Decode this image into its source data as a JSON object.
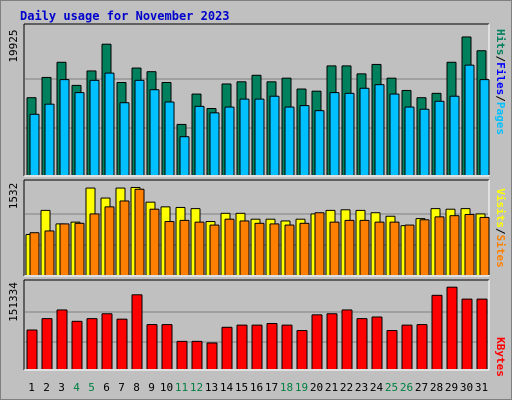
{
  "title": "Daily usage for November 2023",
  "colors": {
    "hits": "#00805c",
    "files": "#00c0ff",
    "pages": "#0000ff",
    "visits": "#ffff00",
    "sites": "#ff8000",
    "kbytes": "#ff0000",
    "weekend_label": "#008040",
    "weekday_label": "#000000",
    "panel_bg": "#c0c0c0",
    "gridline": "#808080"
  },
  "legend": {
    "top": {
      "hits": "Hits",
      "files": "Files",
      "pages": "Pages",
      "sep": "/"
    },
    "mid": {
      "visits": "Visits",
      "sites": "Sites",
      "sep": "/"
    },
    "bottom": {
      "kbytes": "KBytes"
    }
  },
  "chart_data": [
    {
      "type": "bar",
      "panel": "hits-files-pages",
      "max_label": "19925",
      "ylim": [
        0,
        19925
      ],
      "categories": [
        "1",
        "2",
        "3",
        "4",
        "5",
        "6",
        "7",
        "8",
        "9",
        "10",
        "11",
        "12",
        "13",
        "14",
        "15",
        "16",
        "17",
        "18",
        "19",
        "20",
        "21",
        "22",
        "23",
        "24",
        "25",
        "26",
        "27",
        "28",
        "29",
        "30",
        "31"
      ],
      "weekend_days": [
        "4",
        "5",
        "11",
        "12",
        "18",
        "19",
        "25",
        "26"
      ],
      "series": [
        {
          "name": "Hits",
          "values": [
            10700,
            13500,
            15600,
            12400,
            14400,
            18100,
            12800,
            14800,
            14300,
            12800,
            7000,
            11200,
            9200,
            12600,
            12900,
            13800,
            12900,
            13400,
            11900,
            11600,
            15100,
            15100,
            14000,
            15300,
            13400,
            11700,
            10700,
            11300,
            15600,
            19100,
            17200
          ]
        },
        {
          "name": "Files",
          "values": [
            8400,
            9800,
            13200,
            11400,
            13100,
            14100,
            10000,
            13100,
            11800,
            10100,
            5300,
            9500,
            8600,
            9400,
            10500,
            10500,
            10900,
            9400,
            9600,
            8900,
            11400,
            11300,
            12000,
            12500,
            11200,
            9400,
            9100,
            10200,
            10900,
            15200,
            13200
          ]
        },
        {
          "name": "Pages",
          "values": [
            0,
            0,
            0,
            0,
            0,
            0,
            0,
            0,
            0,
            0,
            0,
            0,
            0,
            0,
            0,
            0,
            0,
            0,
            0,
            0,
            0,
            0,
            0,
            0,
            0,
            0,
            0,
            0,
            0,
            0,
            0
          ]
        }
      ]
    },
    {
      "type": "bar",
      "panel": "visits-sites",
      "max_label": "1532",
      "ylim": [
        0,
        1532
      ],
      "categories": [
        "1",
        "2",
        "3",
        "4",
        "5",
        "6",
        "7",
        "8",
        "9",
        "10",
        "11",
        "12",
        "13",
        "14",
        "15",
        "16",
        "17",
        "18",
        "19",
        "20",
        "21",
        "22",
        "23",
        "24",
        "25",
        "26",
        "27",
        "28",
        "29",
        "30",
        "31"
      ],
      "series": [
        {
          "name": "Visits",
          "values": [
            690,
            1100,
            870,
            900,
            1480,
            1310,
            1480,
            1490,
            1240,
            1160,
            1150,
            1130,
            910,
            1050,
            1050,
            950,
            950,
            920,
            950,
            1040,
            1100,
            1110,
            1100,
            1060,
            1000,
            840,
            960,
            1130,
            1120,
            1130,
            1040
          ]
        },
        {
          "name": "Sites",
          "values": [
            720,
            750,
            870,
            880,
            1040,
            1160,
            1260,
            1460,
            1120,
            910,
            930,
            900,
            850,
            950,
            920,
            880,
            870,
            850,
            880,
            1060,
            900,
            930,
            930,
            900,
            900,
            850,
            940,
            990,
            1010,
            1030,
            980
          ]
        }
      ]
    },
    {
      "type": "bar",
      "panel": "kbytes",
      "max_label": "151334",
      "ylim": [
        0,
        151334
      ],
      "categories": [
        "1",
        "2",
        "3",
        "4",
        "5",
        "6",
        "7",
        "8",
        "9",
        "10",
        "11",
        "12",
        "13",
        "14",
        "15",
        "16",
        "17",
        "18",
        "19",
        "20",
        "21",
        "22",
        "23",
        "24",
        "25",
        "26",
        "27",
        "28",
        "29",
        "30",
        "31"
      ],
      "series": [
        {
          "name": "KBytes",
          "values": [
            72000,
            93000,
            109000,
            88000,
            93000,
            102000,
            92000,
            137000,
            82000,
            82000,
            51000,
            51000,
            48000,
            77000,
            81000,
            81000,
            84000,
            81000,
            71000,
            100000,
            102000,
            109000,
            93000,
            96000,
            71000,
            81000,
            82000,
            136000,
            151000,
            129000,
            129000
          ]
        }
      ]
    }
  ]
}
